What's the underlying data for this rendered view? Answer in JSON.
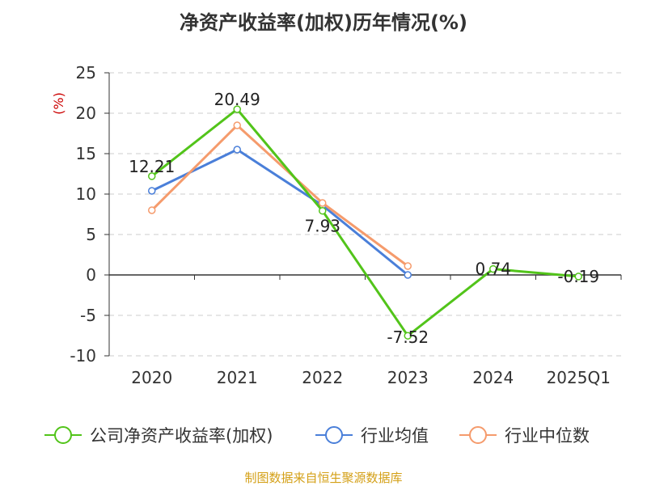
{
  "chart_data": {
    "type": "line",
    "title": "净资产收益率(加权)历年情况(%)",
    "ylabel": "(%)",
    "xlabel": "",
    "categories": [
      "2020",
      "2021",
      "2022",
      "2023",
      "2024",
      "2025Q1"
    ],
    "ylim": [
      -10,
      25
    ],
    "yticks": [
      -10,
      -5,
      0,
      5,
      10,
      15,
      20,
      25
    ],
    "grid": true,
    "legend_position": "bottom",
    "series": [
      {
        "name": "公司净资产收益率(加权)",
        "color": "#52c41a",
        "values": [
          12.21,
          20.49,
          7.93,
          -7.52,
          0.74,
          -0.19
        ],
        "labels": [
          "12.21",
          "20.49",
          "7.93",
          "-7.52",
          "0.74",
          "-0.19"
        ]
      },
      {
        "name": "行业均值",
        "color": "#4a7fd9",
        "values": [
          10.4,
          15.5,
          8.6,
          0.0,
          null,
          null
        ]
      },
      {
        "name": "行业中位数",
        "color": "#f59b6c",
        "values": [
          8.0,
          18.5,
          8.9,
          1.1,
          null,
          null
        ]
      }
    ],
    "source": "制图数据来自恒生聚源数据库"
  }
}
